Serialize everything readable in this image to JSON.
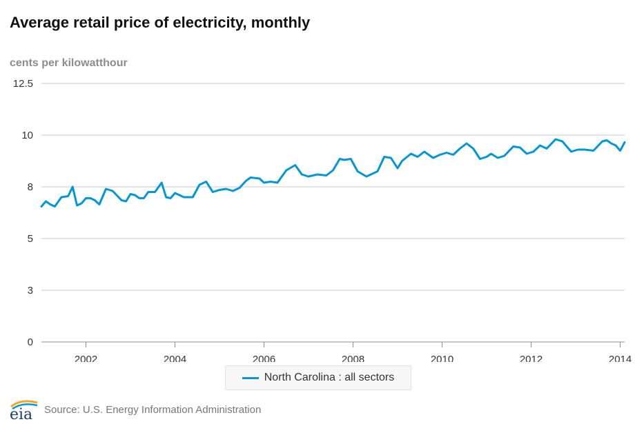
{
  "chart_data": {
    "type": "line",
    "title": "Average retail price of electricity, monthly",
    "ylabel": "cents per kilowatthour",
    "xlabel": "",
    "y_ticks": [
      "0",
      "3",
      "5",
      "8",
      "10",
      "12.5"
    ],
    "y_tick_values": [
      0,
      2.5,
      5,
      7.5,
      10,
      12.5
    ],
    "ylim": [
      0,
      12.5
    ],
    "x_ticks": [
      "2002",
      "2004",
      "2006",
      "2008",
      "2010",
      "2012",
      "2014"
    ],
    "x_tick_values": [
      2002,
      2004,
      2006,
      2008,
      2010,
      2012,
      2014
    ],
    "xlim": [
      2001,
      2014.1
    ],
    "grid": true,
    "legend_position": "bottom",
    "series": [
      {
        "name": "North Carolina : all sectors",
        "color": "#0096d7",
        "x": [
          2001.0,
          2001.1,
          2001.2,
          2001.3,
          2001.45,
          2001.6,
          2001.7,
          2001.8,
          2001.9,
          2002.0,
          2002.1,
          2002.2,
          2002.3,
          2002.45,
          2002.6,
          2002.8,
          2002.9,
          2003.0,
          2003.1,
          2003.2,
          2003.3,
          2003.4,
          2003.55,
          2003.7,
          2003.8,
          2003.9,
          2004.0,
          2004.2,
          2004.4,
          2004.55,
          2004.7,
          2004.85,
          2005.0,
          2005.15,
          2005.3,
          2005.45,
          2005.6,
          2005.7,
          2005.9,
          2006.0,
          2006.15,
          2006.3,
          2006.5,
          2006.7,
          2006.85,
          2007.0,
          2007.2,
          2007.4,
          2007.55,
          2007.7,
          2007.8,
          2007.95,
          2008.1,
          2008.3,
          2008.45,
          2008.55,
          2008.7,
          2008.85,
          2009.0,
          2009.1,
          2009.3,
          2009.45,
          2009.6,
          2009.8,
          2009.95,
          2010.1,
          2010.25,
          2010.4,
          2010.55,
          2010.7,
          2010.85,
          2011.0,
          2011.1,
          2011.25,
          2011.4,
          2011.6,
          2011.75,
          2011.9,
          2012.05,
          2012.2,
          2012.35,
          2012.55,
          2012.7,
          2012.9,
          2013.05,
          2013.2,
          2013.4,
          2013.6,
          2013.7,
          2013.8,
          2013.9,
          2014.0,
          2014.1
        ],
        "values": [
          6.55,
          6.8,
          6.65,
          6.55,
          7.0,
          7.05,
          7.5,
          6.6,
          6.7,
          6.95,
          6.95,
          6.85,
          6.65,
          7.4,
          7.3,
          6.85,
          6.8,
          7.15,
          7.1,
          6.95,
          6.95,
          7.25,
          7.25,
          7.7,
          7.0,
          6.95,
          7.2,
          7.0,
          7.0,
          7.6,
          7.75,
          7.25,
          7.35,
          7.4,
          7.3,
          7.45,
          7.8,
          7.95,
          7.9,
          7.7,
          7.75,
          7.7,
          8.3,
          8.55,
          8.1,
          8.0,
          8.1,
          8.05,
          8.3,
          8.85,
          8.8,
          8.85,
          8.25,
          8.0,
          8.15,
          8.25,
          8.95,
          8.9,
          8.4,
          8.75,
          9.1,
          8.95,
          9.2,
          8.9,
          9.05,
          9.15,
          9.05,
          9.35,
          9.6,
          9.35,
          8.85,
          8.95,
          9.1,
          8.9,
          9.0,
          9.45,
          9.4,
          9.1,
          9.2,
          9.5,
          9.35,
          9.8,
          9.7,
          9.2,
          9.3,
          9.3,
          9.25,
          9.7,
          9.75,
          9.6,
          9.5,
          9.25,
          9.65
        ]
      }
    ]
  },
  "source_text": "Source: U.S. Energy Information Administration",
  "logo_text": "eia"
}
